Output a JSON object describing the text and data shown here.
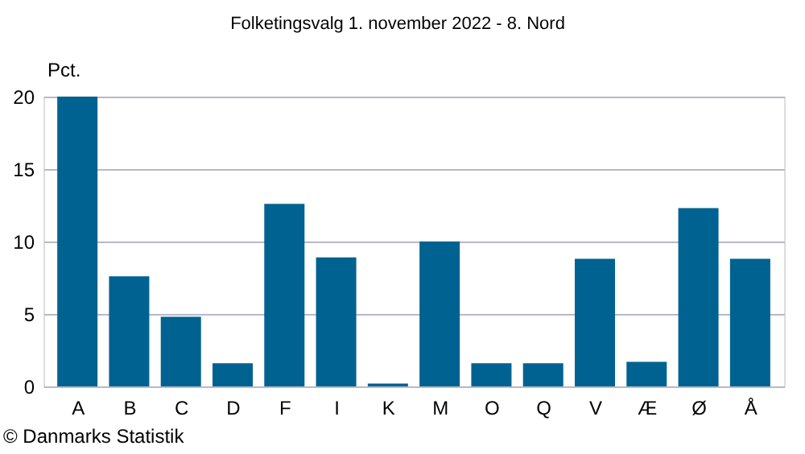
{
  "chart_data": {
    "type": "bar",
    "title": "Folketingsvalg 1. november 2022 - 8. Nord",
    "ylabel": "Pct.",
    "categories": [
      "A",
      "B",
      "C",
      "D",
      "F",
      "I",
      "K",
      "M",
      "O",
      "Q",
      "V",
      "Æ",
      "Ø",
      "Å"
    ],
    "values": [
      20.0,
      7.6,
      4.8,
      1.6,
      12.6,
      8.9,
      0.2,
      10.0,
      1.6,
      1.6,
      8.8,
      1.7,
      12.3,
      8.8
    ],
    "color": "#006290",
    "ylim": [
      0,
      20
    ],
    "yticks": [
      0,
      5,
      10,
      15,
      20
    ],
    "grid": "y",
    "annotations": [
      "© Danmarks Statistik"
    ]
  }
}
